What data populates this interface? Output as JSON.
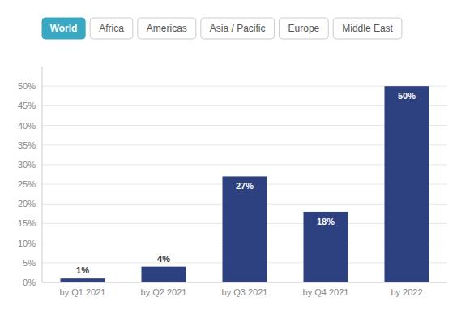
{
  "chart_data": {
    "type": "bar",
    "annotations": [
      "World",
      "Africa",
      "Americas",
      "Asia / Pacific",
      "Europe",
      "Middle East"
    ],
    "categories": [
      "by Q1 2021",
      "by Q2 2021",
      "by Q3 2021",
      "by Q4 2021",
      "by 2022"
    ],
    "values": [
      1,
      4,
      27,
      18,
      50
    ],
    "value_labels": [
      "1%",
      "4%",
      "27%",
      "18%",
      "50%"
    ],
    "data_labels": true,
    "color": "#2d4080",
    "ylim": [
      0,
      55
    ],
    "yticks": [
      {
        "value": 0,
        "label": "0%"
      },
      {
        "value": 5,
        "label": "5%"
      },
      {
        "value": 10,
        "label": "10%"
      },
      {
        "value": 15,
        "label": "15%"
      },
      {
        "value": 20,
        "label": "20%"
      },
      {
        "value": 25,
        "label": "25%"
      },
      {
        "value": 30,
        "label": "30%"
      },
      {
        "value": 35,
        "label": "35%"
      },
      {
        "value": 40,
        "label": "40%"
      },
      {
        "value": 45,
        "label": "45%"
      },
      {
        "value": 50,
        "label": "50%"
      }
    ],
    "grid": true
  }
}
